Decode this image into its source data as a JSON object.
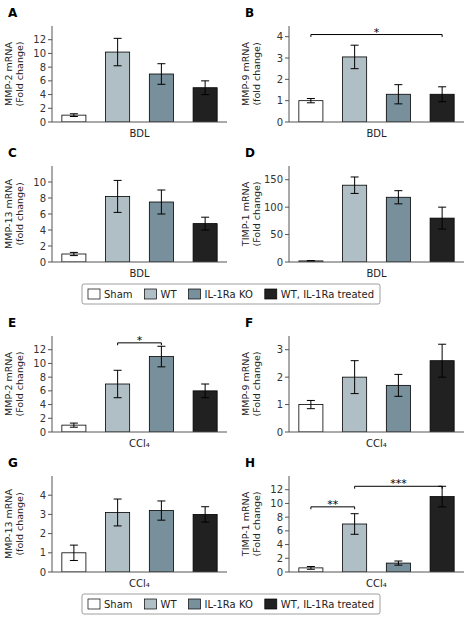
{
  "chart_data": [
    {
      "type": "bar",
      "title": "A",
      "x_label": "BDL",
      "y_label": "MMP-2 mRNA\n(Fold change)",
      "categories": [
        "Sham",
        "WT",
        "IL-1Ra KO",
        "WT, IL-1Ra treated"
      ],
      "tick_labels": "y",
      "values": [
        1.0,
        10.2,
        7.0,
        5.0
      ],
      "errors": [
        0.2,
        2.0,
        1.5,
        1.0
      ],
      "colors": [
        "white",
        "#b0bec5",
        "#78909c",
        "#212121"
      ],
      "ylim": [
        0,
        14
      ],
      "yticks": [
        0,
        2,
        4,
        6,
        8,
        10,
        12
      ],
      "grid": false
    },
    {
      "type": "bar",
      "title": "B",
      "x_label": "BDL",
      "y_label": "MMP-9 mRNA\n(fold change)",
      "categories": [
        "Sham",
        "WT",
        "IL-1Ra KO",
        "WT, IL-1Ra treated"
      ],
      "tick_labels": "y",
      "values": [
        1.0,
        3.05,
        1.3,
        1.3
      ],
      "errors": [
        0.1,
        0.55,
        0.45,
        0.35
      ],
      "colors": [
        "white",
        "#b0bec5",
        "#78909c",
        "#212121"
      ],
      "ylim": [
        0,
        4.5
      ],
      "yticks": [
        0,
        1,
        2,
        3,
        4
      ],
      "grid": false,
      "annotations": [
        {
          "text": "*",
          "from": "Sham",
          "to": "WT, IL-1Ra treated",
          "y": 4.1
        }
      ]
    },
    {
      "type": "bar",
      "title": "C",
      "x_label": "BDL",
      "y_label": "MMP-13 mRNA\n(fold change)",
      "categories": [
        "Sham",
        "WT",
        "IL-1Ra KO",
        "WT, IL-1Ra treated"
      ],
      "tick_labels": "y",
      "values": [
        1.0,
        8.2,
        7.5,
        4.8
      ],
      "errors": [
        0.2,
        2.0,
        1.5,
        0.8
      ],
      "colors": [
        "white",
        "#b0bec5",
        "#78909c",
        "#212121"
      ],
      "ylim": [
        0,
        12
      ],
      "yticks": [
        0,
        2,
        4,
        6,
        8,
        10
      ],
      "grid": false
    },
    {
      "type": "bar",
      "title": "D",
      "x_label": "BDL",
      "y_label": "TIMP-1 mRNA\n(Fold change)",
      "categories": [
        "Sham",
        "WT",
        "IL-1Ra KO",
        "WT, IL-1Ra treated"
      ],
      "tick_labels": "y",
      "values": [
        2.0,
        140.0,
        118.0,
        80.0
      ],
      "errors": [
        0.5,
        15.0,
        12.0,
        20.0
      ],
      "colors": [
        "white",
        "#b0bec5",
        "#78909c",
        "#212121"
      ],
      "ylim": [
        0,
        175
      ],
      "yticks": [
        0,
        50,
        100,
        150
      ],
      "grid": false,
      "legend": "bottom"
    },
    {
      "type": "bar",
      "title": "E",
      "x_label": "CCl₄",
      "y_label": "MMP-2 mRNA\n(Fold change)",
      "categories": [
        "Sham",
        "WT",
        "IL-1Ra KO",
        "WT, IL-1Ra treated"
      ],
      "tick_labels": "y",
      "values": [
        1.0,
        7.0,
        11.0,
        6.0
      ],
      "errors": [
        0.3,
        2.0,
        1.5,
        1.0
      ],
      "colors": [
        "white",
        "#b0bec5",
        "#78909c",
        "#212121"
      ],
      "ylim": [
        0,
        14
      ],
      "yticks": [
        0,
        2,
        4,
        6,
        8,
        10,
        12
      ],
      "grid": false,
      "annotations": [
        {
          "text": "*",
          "from": "WT",
          "to": "IL-1Ra KO",
          "y": 13.0
        }
      ]
    },
    {
      "type": "bar",
      "title": "F",
      "x_label": "CCl₄",
      "y_label": "MMP-9 mRNA\n(Fold change)",
      "categories": [
        "Sham",
        "WT",
        "IL-1Ra KO",
        "WT, IL-1Ra treated"
      ],
      "tick_labels": "y",
      "values": [
        1.0,
        2.0,
        1.7,
        2.6
      ],
      "errors": [
        0.15,
        0.6,
        0.4,
        0.6
      ],
      "colors": [
        "white",
        "#b0bec5",
        "#78909c",
        "#212121"
      ],
      "ylim": [
        0,
        3.5
      ],
      "yticks": [
        0,
        1,
        2,
        3
      ],
      "grid": false
    },
    {
      "type": "bar",
      "title": "G",
      "x_label": "CCl₄",
      "y_label": "MMP-13 mRNA\n(fold change)",
      "categories": [
        "Sham",
        "WT",
        "IL-1Ra KO",
        "WT, IL-1Ra treated"
      ],
      "tick_labels": "y",
      "values": [
        1.0,
        3.1,
        3.2,
        3.0
      ],
      "errors": [
        0.4,
        0.7,
        0.5,
        0.4
      ],
      "colors": [
        "white",
        "#b0bec5",
        "#78909c",
        "#212121"
      ],
      "ylim": [
        0,
        5
      ],
      "yticks": [
        0,
        1,
        2,
        3,
        4
      ],
      "grid": false
    },
    {
      "type": "bar",
      "title": "H",
      "x_label": "CCl₄",
      "y_label": "TIMP-1 mRNA\n(Fold change)",
      "categories": [
        "Sham",
        "WT",
        "IL-1Ra KO",
        "WT, IL-1Ra treated"
      ],
      "tick_labels": "y",
      "values": [
        0.6,
        7.0,
        1.3,
        11.0
      ],
      "errors": [
        0.2,
        1.5,
        0.3,
        1.5
      ],
      "colors": [
        "white",
        "#b0bec5",
        "#78909c",
        "#212121"
      ],
      "ylim": [
        0,
        14
      ],
      "yticks": [
        0,
        2,
        4,
        6,
        8,
        10,
        12
      ],
      "grid": false,
      "legend": "bottom",
      "annotations": [
        {
          "text": "**",
          "from": "Sham",
          "to": "WT",
          "y": 9.5
        },
        {
          "text": "***",
          "from": "WT",
          "to": "WT, IL-1Ra treated",
          "y": 12.5
        }
      ]
    }
  ]
}
